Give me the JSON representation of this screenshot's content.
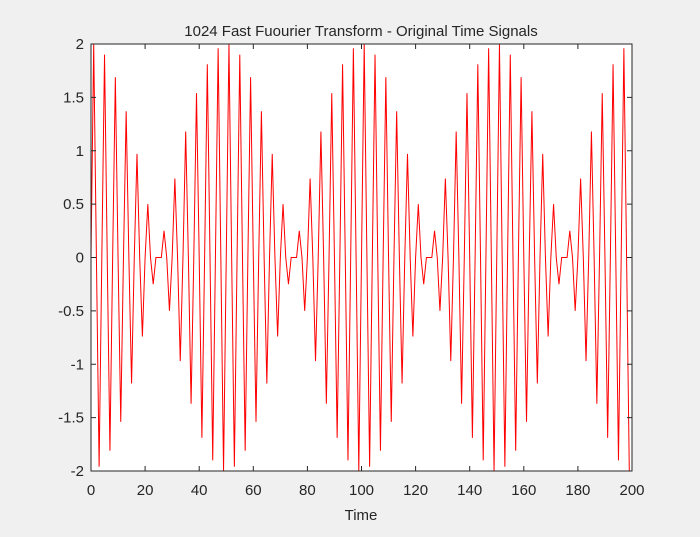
{
  "chart_data": {
    "type": "line",
    "title": "1024 Fast Fuourier Transform - Original Time Signals",
    "xlabel": "Time",
    "ylabel": "",
    "xlim": [
      0,
      200
    ],
    "ylim": [
      -2,
      2
    ],
    "xticks": [
      "0",
      "20",
      "40",
      "60",
      "80",
      "100",
      "120",
      "140",
      "160",
      "180",
      "200"
    ],
    "yticks": [
      "2",
      "1.5",
      "1",
      "0.5",
      "0",
      "-0.5",
      "-1",
      "-1.5",
      "-2"
    ],
    "grid": false,
    "legend": "none",
    "series": [
      {
        "color": "#ff0000",
        "x": [
          0,
          1,
          2,
          3,
          4,
          5,
          6,
          7,
          8,
          9,
          10,
          11,
          12,
          13,
          14,
          15,
          16,
          17,
          18,
          19,
          20,
          21,
          22,
          23,
          24,
          25,
          26,
          27,
          28,
          29,
          30,
          31,
          32,
          33,
          34,
          35,
          36,
          37,
          38,
          39,
          40,
          41,
          42,
          43,
          44,
          45,
          46,
          47,
          48,
          49,
          50,
          51,
          52,
          53,
          54,
          55,
          56,
          57,
          58,
          59,
          60,
          61,
          62,
          63,
          64,
          65,
          66,
          67,
          68,
          69,
          70,
          71,
          72,
          73,
          74,
          75,
          76,
          77,
          78,
          79,
          80,
          81,
          82,
          83,
          84,
          85,
          86,
          87,
          88,
          89,
          90,
          91,
          92,
          93,
          94,
          95,
          96,
          97,
          98,
          99,
          100,
          101,
          102,
          103,
          104,
          105,
          106,
          107,
          108,
          109,
          110,
          111,
          112,
          113,
          114,
          115,
          116,
          117,
          118,
          119,
          120,
          121,
          122,
          123,
          124,
          125,
          126,
          127,
          128,
          129,
          130,
          131,
          132,
          133,
          134,
          135,
          136,
          137,
          138,
          139,
          140,
          141,
          142,
          143,
          144,
          145,
          146,
          147,
          148,
          149,
          150,
          151,
          152,
          153,
          154,
          155,
          156,
          157,
          158,
          159,
          160,
          161,
          162,
          163,
          164,
          165,
          166,
          167,
          168,
          169,
          170,
          171,
          172,
          173,
          174,
          175,
          176,
          177,
          178,
          179,
          180,
          181,
          182,
          183,
          184,
          185,
          186,
          187,
          188,
          189,
          190,
          191,
          192,
          193,
          194,
          195,
          196,
          197,
          198,
          199
        ],
        "y": [
          0,
          2,
          0,
          -1.96,
          0,
          1.9,
          0,
          -1.81,
          0,
          1.69,
          0,
          -1.54,
          0,
          1.37,
          0,
          -1.18,
          0,
          0.97,
          0,
          -0.74,
          0,
          0.5,
          0,
          -0.25,
          0,
          0,
          0,
          0.25,
          0,
          -0.5,
          0,
          0.74,
          0,
          -0.97,
          0,
          1.18,
          0,
          -1.37,
          0,
          1.54,
          0,
          -1.69,
          0,
          1.81,
          0,
          -1.9,
          0,
          1.96,
          0,
          -2,
          0,
          2,
          0,
          -1.96,
          0,
          1.9,
          0,
          -1.81,
          0,
          1.69,
          0,
          -1.54,
          0,
          1.37,
          0,
          -1.18,
          0,
          0.97,
          0,
          -0.74,
          0,
          0.5,
          0,
          -0.25,
          0,
          0,
          0,
          0.25,
          0,
          -0.5,
          0,
          0.74,
          0,
          -0.97,
          0,
          1.18,
          0,
          -1.37,
          0,
          1.54,
          0,
          -1.69,
          0,
          1.81,
          0,
          -1.9,
          0,
          1.96,
          0,
          -2,
          0,
          2,
          0,
          -1.96,
          0,
          1.9,
          0,
          -1.81,
          0,
          1.69,
          0,
          -1.54,
          0,
          1.37,
          0,
          -1.18,
          0,
          0.97,
          0,
          -0.74,
          0,
          0.5,
          0,
          -0.25,
          0,
          0,
          0,
          0.25,
          0,
          -0.5,
          0,
          0.74,
          0,
          -0.97,
          0,
          1.18,
          0,
          -1.37,
          0,
          1.54,
          0,
          -1.69,
          0,
          1.81,
          0,
          -1.9,
          0,
          1.96,
          0,
          -2,
          0,
          2,
          0,
          -1.96,
          0,
          1.9,
          0,
          -1.81,
          0,
          1.69,
          0,
          -1.54,
          0,
          1.37,
          0,
          -1.18,
          0,
          0.97,
          0,
          -0.74,
          0,
          0.5,
          0,
          -0.25,
          0,
          0,
          0,
          0.25,
          0,
          -0.5,
          0,
          0.74,
          0,
          -0.97,
          0,
          1.18,
          0,
          -1.37,
          0,
          1.54,
          0,
          -1.69,
          0,
          1.81,
          0,
          -1.9,
          0,
          1.96,
          0,
          -2
        ]
      }
    ]
  }
}
